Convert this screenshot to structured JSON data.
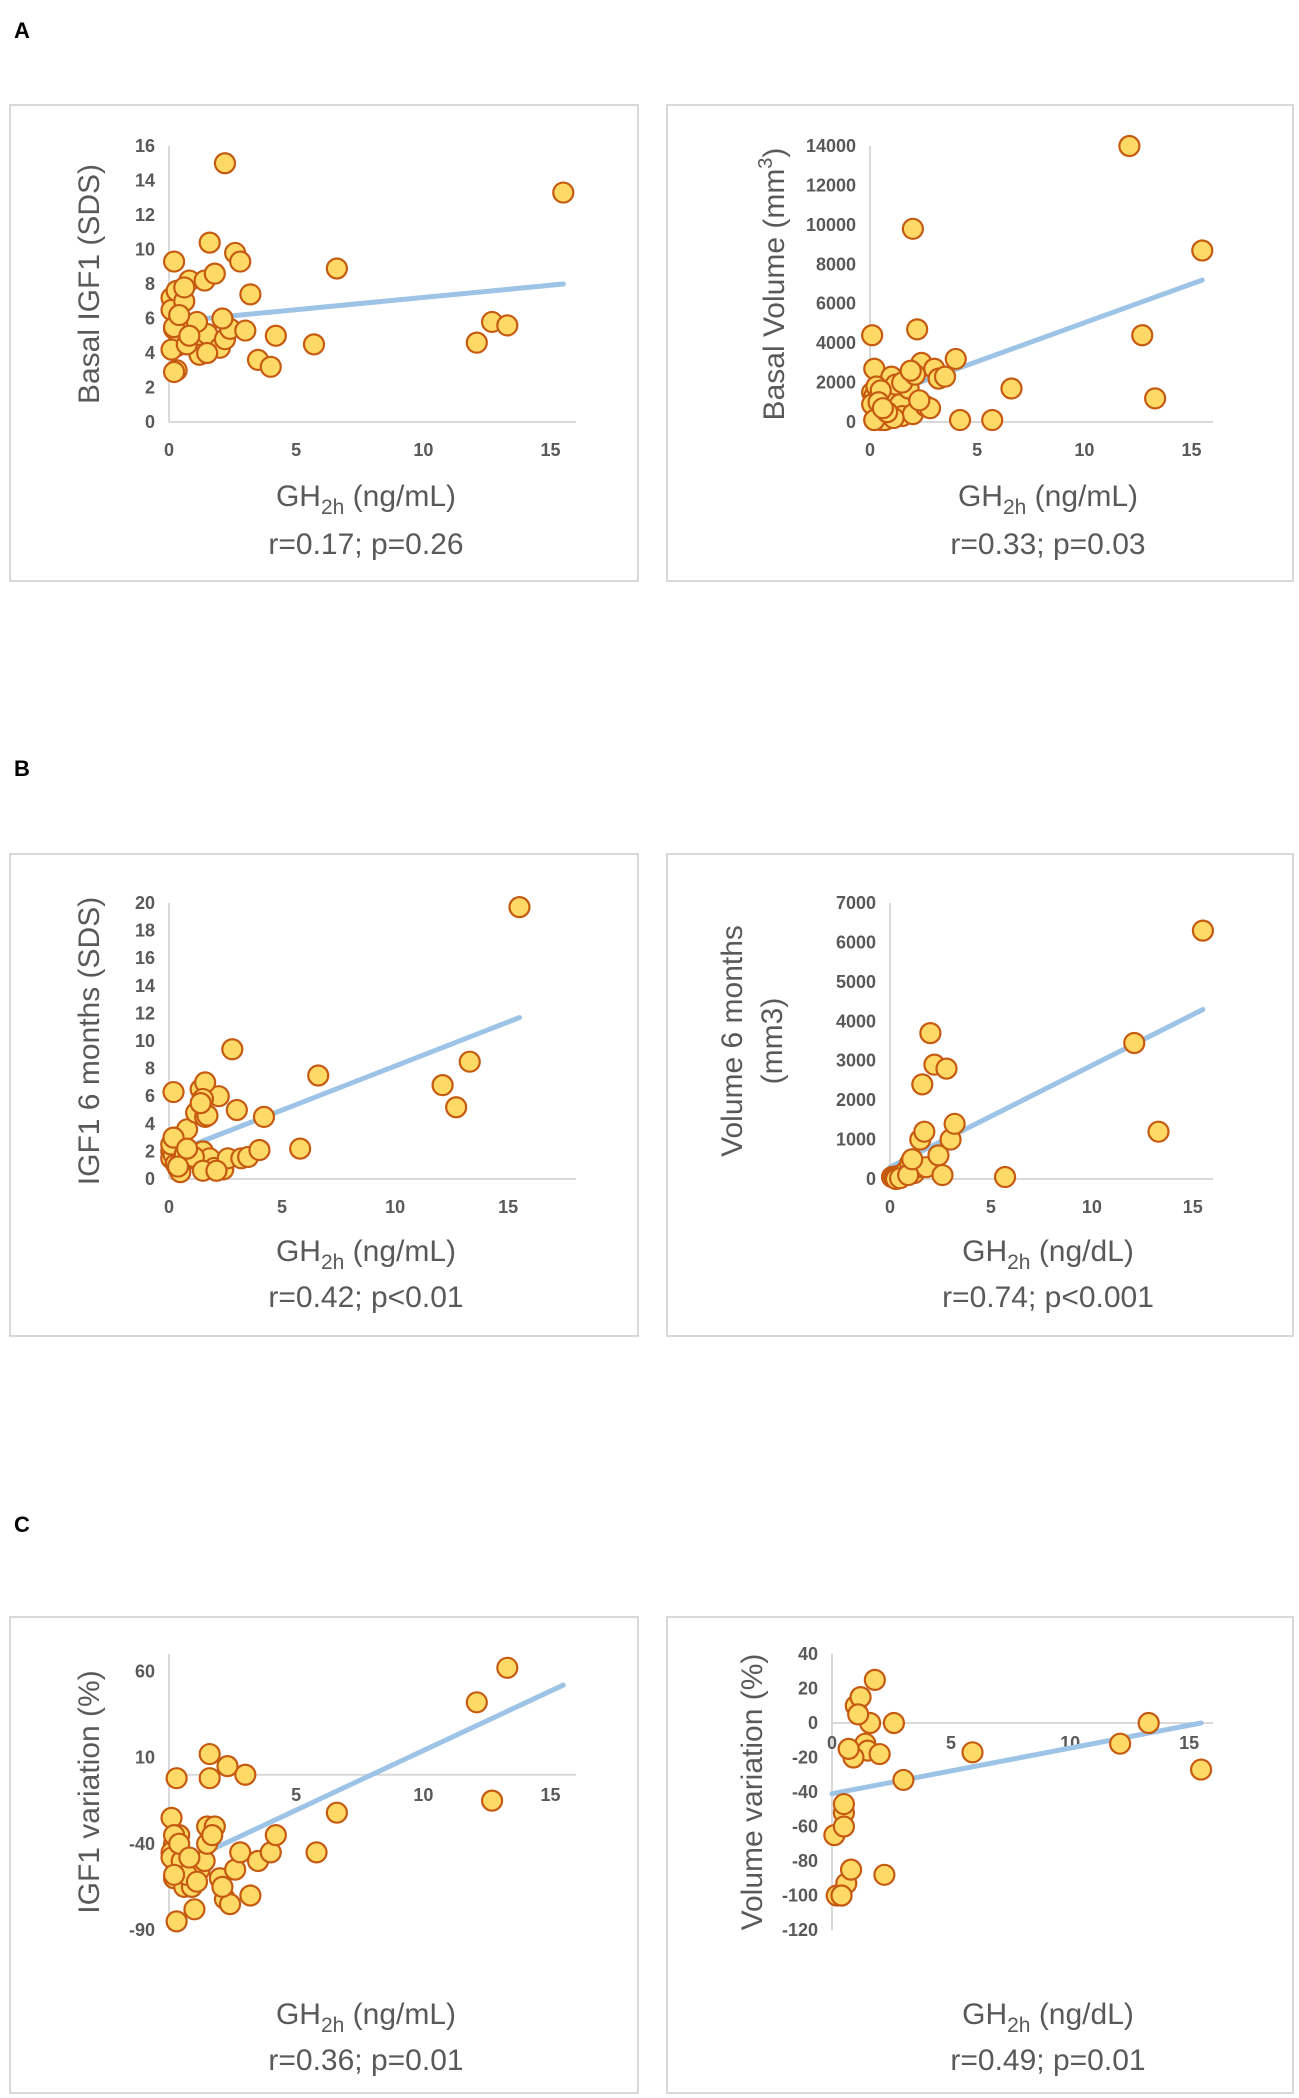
{
  "panel_labels": [
    "A",
    "B",
    "C"
  ],
  "colors": {
    "marker_fill": "#ffd966",
    "marker_edge": "#c55a11",
    "trendline": "#9dc3e6",
    "axis": "#d9d9d9",
    "text": "#595959"
  },
  "chart_data": [
    {
      "type": "scatter",
      "panel": "A",
      "ylabel": "Basal IGF1 (SDS)",
      "xlabel": {
        "base": "GH",
        "sub": "2h",
        "unit": " (ng/mL)"
      },
      "stat": "r=0.17; p=0.26",
      "xlim": [
        0,
        16
      ],
      "ylim": [
        0,
        16
      ],
      "xticks": [
        0,
        5,
        10,
        15
      ],
      "yticks": [
        0,
        2,
        4,
        6,
        8,
        10,
        12,
        14,
        16
      ],
      "xaxis_at": 0,
      "trend": [
        [
          0,
          5.8
        ],
        [
          15.5,
          8.0
        ]
      ],
      "x": [
        0.1,
        0.2,
        0.1,
        0.3,
        0.2,
        0.4,
        0.5,
        0.3,
        0.6,
        0.8,
        0.9,
        1.0,
        1.2,
        1.4,
        1.5,
        1.6,
        1.8,
        2.0,
        2.2,
        2.4,
        2.6,
        2.8,
        3.0,
        3.2,
        3.5,
        4.0,
        4.2,
        5.7,
        6.6,
        2.2,
        12.1,
        12.7,
        13.3,
        15.5,
        0.2,
        0.3,
        0.1,
        0.5,
        0.7,
        1.1,
        1.5,
        0.2,
        0.4,
        0.8,
        2.1,
        0.6
      ],
      "y": [
        7.2,
        9.3,
        6.5,
        7.6,
        5.4,
        6.0,
        4.8,
        3.0,
        7.0,
        8.2,
        5.3,
        4.6,
        3.9,
        8.2,
        5.1,
        10.4,
        8.6,
        4.3,
        4.8,
        5.4,
        9.8,
        9.3,
        5.3,
        7.4,
        3.6,
        3.2,
        5.0,
        4.5,
        8.9,
        15.0,
        4.6,
        5.8,
        5.6,
        13.3,
        2.9,
        4.4,
        4.2,
        5.8,
        4.5,
        5.8,
        4.0,
        5.5,
        6.2,
        5.0,
        6.0,
        7.8
      ]
    },
    {
      "type": "scatter",
      "panel": "A",
      "ylabel": "Basal Volume (mm",
      "ylabel_sup": "3",
      "ylabel_end": ")",
      "xlabel": {
        "base": "GH",
        "sub": "2h",
        "unit": " (ng/mL)"
      },
      "stat": "r=0.33; p=0.03",
      "xlim": [
        0,
        16
      ],
      "ylim": [
        0,
        14000
      ],
      "xticks": [
        0,
        5,
        10,
        15
      ],
      "yticks": [
        0,
        2000,
        4000,
        6000,
        8000,
        10000,
        12000,
        14000
      ],
      "xaxis_at": 0,
      "trend": [
        [
          0,
          1100
        ],
        [
          15.5,
          7200
        ]
      ],
      "x": [
        0.1,
        0.2,
        0.1,
        0.3,
        0.2,
        0.4,
        0.5,
        0.3,
        0.6,
        0.8,
        0.9,
        1.0,
        1.2,
        1.4,
        1.5,
        1.6,
        1.8,
        2.0,
        2.2,
        2.4,
        2.6,
        2.8,
        3.0,
        3.2,
        3.5,
        4.0,
        4.2,
        5.7,
        6.6,
        2.0,
        12.1,
        12.7,
        13.3,
        15.5,
        0.2,
        0.3,
        0.1,
        0.5,
        0.7,
        1.1,
        1.5,
        0.2,
        0.4,
        0.8,
        2.1,
        0.6,
        1.9,
        2.3
      ],
      "y": [
        4400,
        2700,
        1500,
        1100,
        1300,
        400,
        100,
        200,
        600,
        1200,
        1500,
        2300,
        1900,
        900,
        300,
        2000,
        1700,
        400,
        4700,
        3000,
        800,
        700,
        2700,
        2200,
        2300,
        3200,
        100,
        100,
        1700,
        9800,
        14000,
        4400,
        1200,
        8700,
        100,
        1800,
        900,
        1600,
        100,
        200,
        2000,
        100,
        1000,
        500,
        2400,
        700,
        2600,
        1100
      ]
    },
    {
      "type": "scatter",
      "panel": "B",
      "ylabel": "IGF1 6 months (SDS)",
      "xlabel": {
        "base": "GH",
        "sub": "2h",
        "unit": " (ng/mL)"
      },
      "stat": "r=0.42; p<0.01",
      "xlim": [
        0,
        18
      ],
      "ylim": [
        0,
        20
      ],
      "xticks": [
        0,
        5,
        10,
        15
      ],
      "yticks": [
        0,
        2,
        4,
        6,
        8,
        10,
        12,
        14,
        16,
        18,
        20
      ],
      "xaxis_at": 0,
      "trend": [
        [
          0,
          1.8
        ],
        [
          15.5,
          11.7
        ]
      ],
      "x": [
        0.1,
        0.2,
        0.1,
        0.3,
        0.2,
        0.4,
        0.5,
        0.3,
        0.6,
        0.8,
        0.9,
        1.0,
        1.2,
        1.4,
        1.5,
        1.6,
        1.8,
        2.0,
        2.2,
        2.4,
        2.6,
        2.8,
        3.0,
        3.2,
        3.5,
        4.0,
        4.2,
        5.8,
        6.6,
        1.6,
        12.1,
        12.7,
        13.3,
        15.5,
        0.2,
        0.3,
        0.1,
        0.5,
        0.7,
        1.1,
        1.5,
        0.2,
        0.4,
        0.8,
        2.1,
        1.5,
        1.7,
        1.4
      ],
      "y": [
        2.0,
        6.3,
        1.5,
        3.0,
        2.5,
        0.8,
        0.5,
        1.2,
        2.0,
        3.6,
        2.0,
        1.5,
        4.8,
        6.5,
        2.0,
        4.5,
        1.5,
        0.8,
        6.0,
        0.7,
        1.5,
        9.4,
        5.0,
        1.5,
        1.6,
        2.1,
        4.5,
        2.2,
        7.5,
        7.0,
        6.8,
        5.2,
        8.5,
        19.7,
        1.8,
        1.1,
        2.5,
        1.2,
        1.8,
        1.6,
        0.6,
        3.0,
        0.9,
        2.2,
        0.6,
        5.8,
        4.6,
        5.5
      ]
    },
    {
      "type": "scatter",
      "panel": "B",
      "ylabel": "Volume 6 months",
      "ylabel2": "(mm3)",
      "xlabel": {
        "base": "GH",
        "sub": "2h",
        "unit": " (ng/dL)"
      },
      "stat": "r=0.74; p<0.001",
      "xlim": [
        0,
        16
      ],
      "ylim": [
        0,
        7000
      ],
      "xticks": [
        0,
        5,
        10,
        15
      ],
      "yticks": [
        0,
        1000,
        2000,
        3000,
        4000,
        5000,
        6000,
        7000
      ],
      "xaxis_at": 0,
      "trend": [
        [
          0,
          300
        ],
        [
          15.5,
          4300
        ]
      ],
      "x": [
        0.1,
        0.2,
        0.3,
        0.4,
        0.5,
        0.6,
        0.8,
        1.0,
        1.2,
        1.4,
        1.5,
        1.6,
        1.7,
        1.8,
        2.0,
        2.2,
        2.4,
        2.6,
        2.8,
        3.0,
        3.2,
        5.7,
        12.1,
        13.3,
        15.5,
        0.3,
        0.5,
        0.9,
        1.1
      ],
      "y": [
        50,
        30,
        60,
        80,
        40,
        100,
        200,
        400,
        150,
        300,
        1000,
        2400,
        1200,
        300,
        3700,
        2900,
        600,
        100,
        2800,
        1000,
        1400,
        50,
        3450,
        1200,
        6300,
        0,
        20,
        100,
        500
      ]
    },
    {
      "type": "scatter",
      "panel": "C",
      "ylabel": "IGF1 variation (%)",
      "xlabel": {
        "base": "GH",
        "sub": "2h",
        "unit": " (ng/mL)"
      },
      "stat": "r=0.36; p=0.01",
      "xlim": [
        0,
        16
      ],
      "ylim": [
        -90,
        70
      ],
      "xticks": [
        0,
        5,
        10,
        15
      ],
      "xtick_labels": [
        "",
        "5",
        "10",
        "15"
      ],
      "yticks": [
        -90,
        -40,
        10,
        60
      ],
      "xaxis_at": 0,
      "trend": [
        [
          0,
          -55
        ],
        [
          15.5,
          52
        ]
      ],
      "x": [
        0.1,
        0.2,
        0.1,
        0.3,
        0.2,
        0.4,
        0.5,
        0.3,
        0.6,
        0.8,
        0.9,
        1.0,
        1.2,
        1.4,
        1.5,
        1.6,
        1.8,
        2.0,
        2.2,
        2.4,
        2.6,
        2.8,
        3.0,
        3.2,
        3.5,
        4.0,
        4.2,
        5.8,
        6.6,
        1.6,
        12.1,
        12.7,
        13.3,
        15.5,
        0.2,
        0.3,
        0.1,
        0.5,
        0.7,
        1.1,
        1.5,
        0.2,
        0.4,
        0.8,
        2.1,
        1.7,
        2.3
      ],
      "y": [
        -25,
        -40,
        -45,
        -55,
        -60,
        -35,
        -60,
        -85,
        -65,
        -50,
        -65,
        -78,
        -55,
        -50,
        -30,
        12,
        -30,
        -60,
        -72,
        -75,
        -55,
        -45,
        0,
        -70,
        -50,
        -45,
        -35,
        -45,
        -22,
        -2,
        42,
        -15,
        62,
        null,
        -35,
        -2,
        -48,
        -50,
        -58,
        -62,
        -40,
        -58,
        -40,
        -48,
        -65,
        -35,
        5
      ],
      "note": "point at x=15.5 omitted (not drawn)"
    },
    {
      "type": "scatter",
      "panel": "C",
      "ylabel": "Volume variation (%)",
      "xlabel": {
        "base": "GH",
        "sub": "2h",
        "unit": " (ng/dL)"
      },
      "stat": "r=0.49; p=0.01",
      "xlim": [
        0,
        16
      ],
      "ylim": [
        -120,
        40
      ],
      "xticks": [
        0,
        5,
        10,
        15
      ],
      "yticks": [
        -120,
        -100,
        -80,
        -60,
        -40,
        -20,
        0,
        20,
        40
      ],
      "xaxis_at": 0,
      "trend": [
        [
          0,
          -41
        ],
        [
          15.5,
          0
        ]
      ],
      "x": [
        0.1,
        0.2,
        0.4,
        0.6,
        0.8,
        0.9,
        1.0,
        1.2,
        1.4,
        1.5,
        1.6,
        1.8,
        2.0,
        2.2,
        2.6,
        3.0,
        3.3,
        5.9,
        12.1,
        13.3,
        15.5,
        0.5,
        0.5,
        0.9,
        1.1,
        0.4,
        0.7,
        0.5
      ],
      "y": [
        -65,
        -100,
        -100,
        -93,
        -85,
        -17,
        10,
        15,
        -12,
        -16,
        0,
        25,
        -18,
        -88,
        0,
        -33,
        null,
        -17,
        -12,
        0,
        -27,
        -52,
        -47,
        -20,
        5,
        -100,
        -15,
        -60
      ],
      "note": "one value omitted"
    }
  ]
}
